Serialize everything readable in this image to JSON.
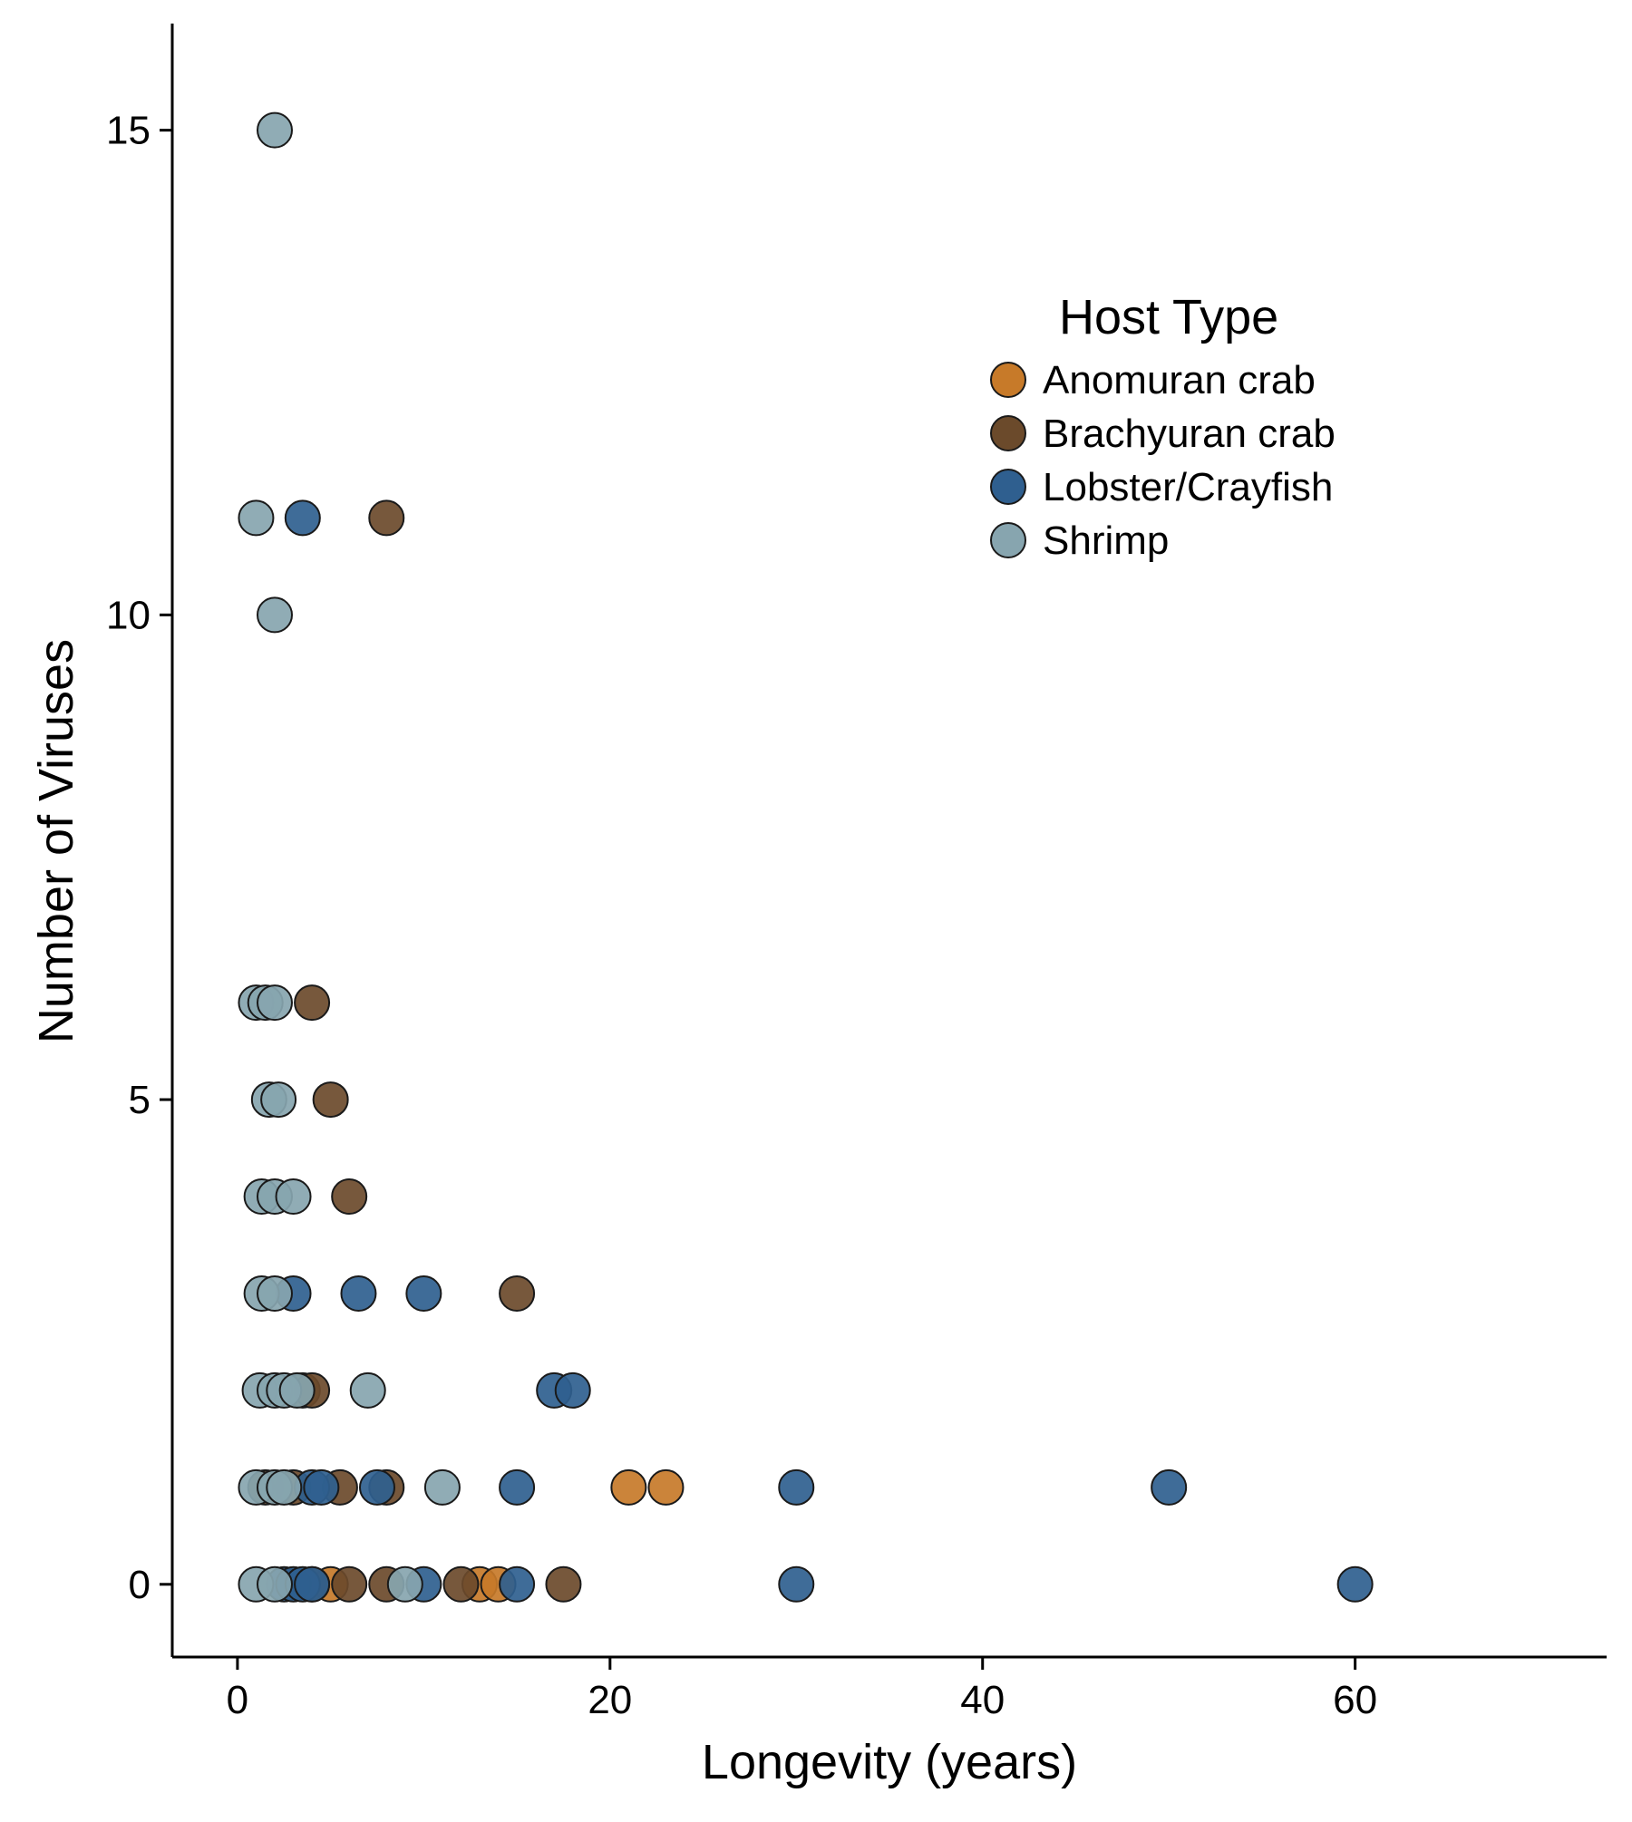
{
  "chart_data": {
    "type": "scatter",
    "title": "",
    "xlabel": "Longevity (years)",
    "ylabel": "Number of Viruses",
    "xlim": [
      -3.5,
      73.5
    ],
    "ylim": [
      -0.75,
      16.1
    ],
    "xticks": [
      0,
      20,
      40,
      60
    ],
    "yticks": [
      0,
      5,
      10,
      15
    ],
    "grid": false,
    "legend": {
      "title": "Host Type",
      "position": "upper-right-inside"
    },
    "series": [
      {
        "name": "Anomuran crab",
        "color": "#C77A29",
        "points": [
          [
            5,
            0
          ],
          [
            13,
            0
          ],
          [
            14,
            0
          ],
          [
            21,
            1
          ],
          [
            23,
            1
          ]
        ]
      },
      {
        "name": "Brachyuran crab",
        "color": "#6B4A2B",
        "points": [
          [
            8,
            11
          ],
          [
            4,
            6
          ],
          [
            5,
            5
          ],
          [
            6,
            4
          ],
          [
            15,
            3
          ],
          [
            3.5,
            2
          ],
          [
            4,
            2
          ],
          [
            1.5,
            1
          ],
          [
            3,
            1
          ],
          [
            5.5,
            1
          ],
          [
            8,
            1
          ],
          [
            4,
            0
          ],
          [
            6,
            0
          ],
          [
            8,
            0
          ],
          [
            12,
            0
          ],
          [
            17.5,
            0
          ]
        ]
      },
      {
        "name": "Lobster/Crayfish",
        "color": "#2F5F8F",
        "points": [
          [
            3.5,
            11
          ],
          [
            3,
            3
          ],
          [
            6.5,
            3
          ],
          [
            10,
            3
          ],
          [
            17,
            2
          ],
          [
            18,
            2
          ],
          [
            4,
            1
          ],
          [
            4.5,
            1
          ],
          [
            7.5,
            1
          ],
          [
            15,
            1
          ],
          [
            30,
            1
          ],
          [
            50,
            1
          ],
          [
            2.5,
            0
          ],
          [
            3,
            0
          ],
          [
            3.5,
            0
          ],
          [
            4,
            0
          ],
          [
            10,
            0
          ],
          [
            15,
            0
          ],
          [
            30,
            0
          ],
          [
            60,
            0
          ]
        ]
      },
      {
        "name": "Shrimp",
        "color": "#87A5AF",
        "points": [
          [
            2,
            15
          ],
          [
            1,
            11
          ],
          [
            2,
            10
          ],
          [
            1,
            6
          ],
          [
            1.5,
            6
          ],
          [
            2,
            6
          ],
          [
            1.7,
            5
          ],
          [
            2.2,
            5
          ],
          [
            1.3,
            4
          ],
          [
            2,
            4
          ],
          [
            3,
            4
          ],
          [
            1.3,
            3
          ],
          [
            2,
            3
          ],
          [
            1.2,
            2
          ],
          [
            2,
            2
          ],
          [
            2.5,
            2
          ],
          [
            3.2,
            2
          ],
          [
            7,
            2
          ],
          [
            1,
            1
          ],
          [
            2,
            1
          ],
          [
            2.5,
            1
          ],
          [
            11,
            1
          ],
          [
            1,
            0
          ],
          [
            2,
            0
          ],
          [
            9,
            0
          ]
        ]
      }
    ]
  }
}
